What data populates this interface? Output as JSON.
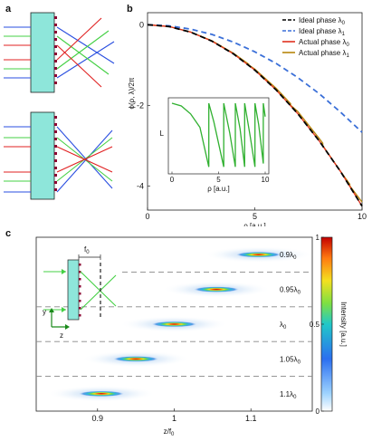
{
  "panels": {
    "a": "a",
    "b": "b",
    "c": "c"
  },
  "chart_data": [
    {
      "type": "line",
      "panel": "b",
      "xlabel": "ρ [a.u.]",
      "ylabel": "ϕ(ρ, λ)/2π",
      "xlim": [
        0,
        10
      ],
      "ylim": [
        -4.6,
        0.3
      ],
      "xticks": [
        0,
        5,
        10
      ],
      "yticks": [
        0,
        -2,
        -4
      ],
      "legend_position": "top-right",
      "series": [
        {
          "name": "Ideal phase λ",
          "sub": "0",
          "color": "#000000",
          "style": "dashed",
          "x": [
            0,
            1,
            2,
            3,
            4,
            5,
            6,
            7,
            8,
            9,
            10
          ],
          "y": [
            0,
            -0.045,
            -0.18,
            -0.405,
            -0.72,
            -1.125,
            -1.62,
            -2.205,
            -2.88,
            -3.645,
            -4.5
          ]
        },
        {
          "name": "Ideal phase λ",
          "sub": "1",
          "color": "#3a6fd8",
          "style": "dashed",
          "x": [
            0,
            1,
            2,
            3,
            4,
            5,
            6,
            7,
            8,
            9,
            10
          ],
          "y": [
            0,
            -0.027,
            -0.107,
            -0.24,
            -0.43,
            -0.67,
            -0.96,
            -1.31,
            -1.71,
            -2.17,
            -2.67
          ]
        },
        {
          "name": "Actual phase λ",
          "sub": "0",
          "color": "#e0301e",
          "style": "solid",
          "x": [
            0,
            1,
            2,
            3,
            4,
            5,
            6,
            7,
            8,
            9,
            10
          ],
          "y": [
            0,
            -0.045,
            -0.18,
            -0.405,
            -0.72,
            -1.125,
            -1.62,
            -2.205,
            -2.88,
            -3.645,
            -4.5
          ]
        },
        {
          "name": "Actual phase λ",
          "sub": "1",
          "color": "#b8860b",
          "style": "solid",
          "x": [
            0,
            1,
            2,
            3,
            4,
            4.72,
            4.72,
            5,
            6,
            6.67,
            6.67,
            7,
            8,
            8.17,
            8.17,
            9,
            9.43,
            9.43,
            10
          ],
          "y": [
            0,
            -0.044,
            -0.176,
            -0.396,
            -0.704,
            -0.98,
            -1.0,
            -1.1,
            -1.58,
            -1.96,
            -2.0,
            -2.15,
            -2.82,
            -2.94,
            -3.0,
            -3.64,
            -3.96,
            -4.0,
            -4.4
          ]
        }
      ]
    },
    {
      "type": "line",
      "panel": "b-inset",
      "xlabel": "ρ [a.u.]",
      "ylabel": "L",
      "xlim": [
        0,
        10
      ],
      "xticks": [
        0,
        5,
        10
      ],
      "series": [
        {
          "color": "#30b030",
          "x": [
            0,
            1,
            2,
            3,
            3.95,
            3.95,
            4.5,
            5.55,
            5.55,
            6.2,
            6.8,
            6.8,
            7.3,
            7.8,
            7.8,
            8.4,
            8.9,
            8.9,
            9.3,
            9.8,
            9.8,
            10
          ],
          "y": [
            1.0,
            0.96,
            0.84,
            0.64,
            0.05,
            1.0,
            0.72,
            0.05,
            1.0,
            0.55,
            0.05,
            1.0,
            0.62,
            0.05,
            1.0,
            0.5,
            0.05,
            1.0,
            0.68,
            0.1,
            1.0,
            0.8
          ]
        }
      ]
    },
    {
      "type": "heatmap",
      "panel": "c",
      "xlabel": "z/f",
      "xlabel_sub": "0",
      "xlim": [
        0.82,
        1.18
      ],
      "xticks": [
        0.9,
        1,
        1.1
      ],
      "colorbar_label": "Intensity [a.u.]",
      "colorbar_ticks": [
        "0",
        "0.5",
        "1"
      ],
      "foci": [
        {
          "label": "0.9λ",
          "sub": "0",
          "z": 1.11
        },
        {
          "label": "0.95λ",
          "sub": "0",
          "z": 1.055
        },
        {
          "label": "λ",
          "sub": "0",
          "z": 1.0
        },
        {
          "label": "1.05λ",
          "sub": "0",
          "z": 0.95
        },
        {
          "label": "1.1λ",
          "sub": "0",
          "z": 0.905
        }
      ]
    }
  ],
  "panel_c_inset": {
    "focal_label": "f",
    "focal_sub": "0",
    "axis_y": "y",
    "axis_z": "z"
  }
}
